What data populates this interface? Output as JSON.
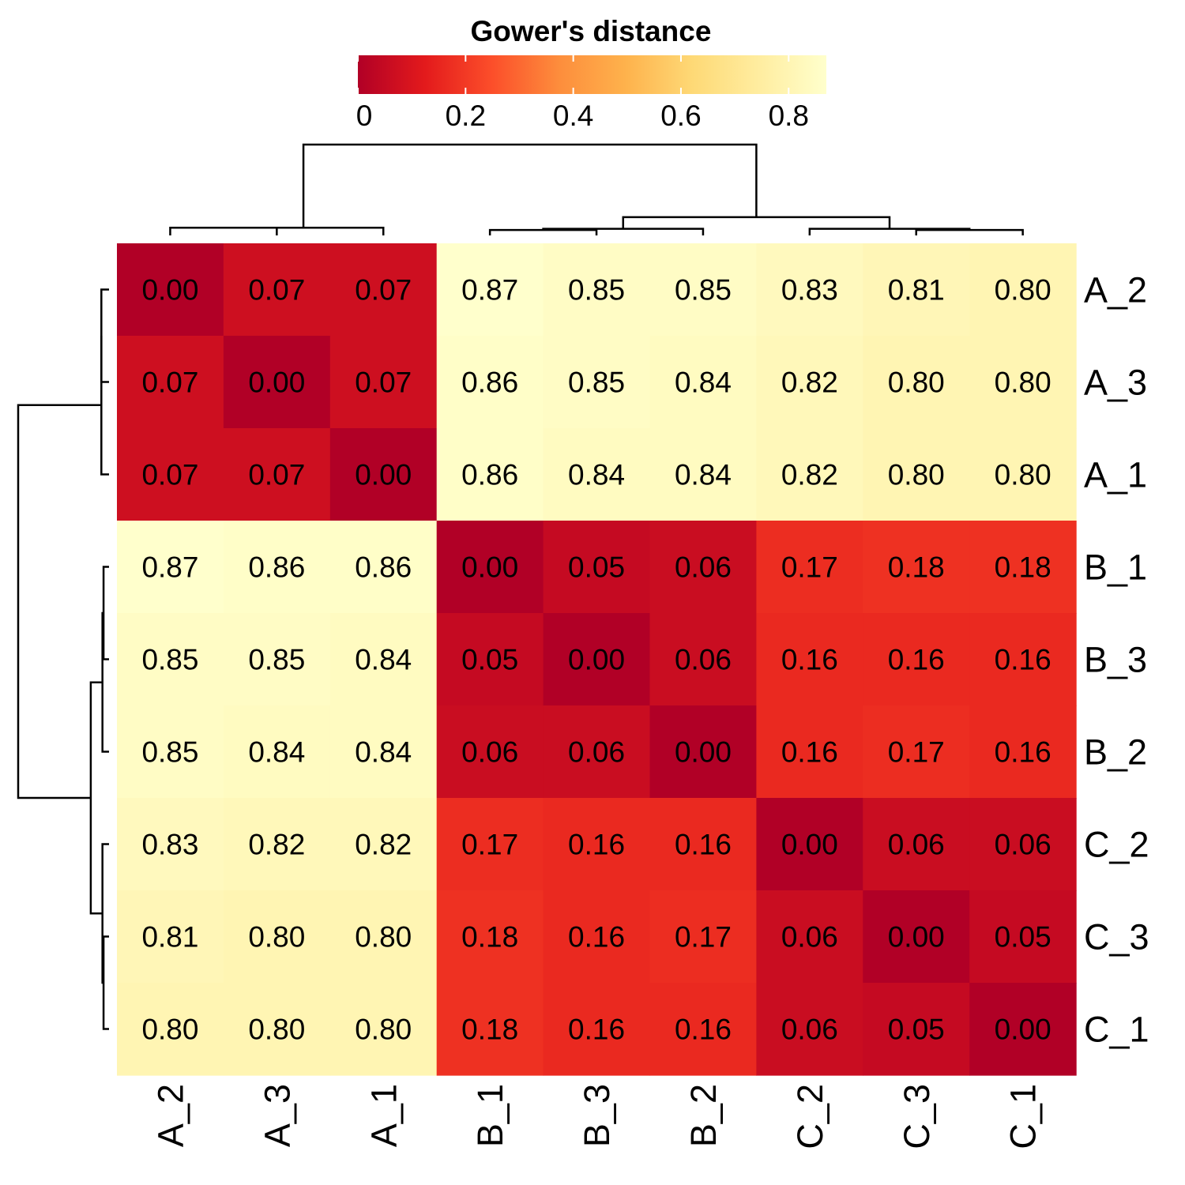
{
  "chart_data": {
    "type": "heatmap",
    "title": "",
    "rows": [
      "A_2",
      "A_3",
      "A_1",
      "B_1",
      "B_3",
      "B_2",
      "C_2",
      "C_3",
      "C_1"
    ],
    "cols": [
      "A_2",
      "A_3",
      "A_1",
      "B_1",
      "B_3",
      "B_2",
      "C_2",
      "C_3",
      "C_1"
    ],
    "values": [
      [
        0.0,
        0.07,
        0.07,
        0.87,
        0.85,
        0.85,
        0.83,
        0.81,
        0.8
      ],
      [
        0.07,
        0.0,
        0.07,
        0.86,
        0.85,
        0.84,
        0.82,
        0.8,
        0.8
      ],
      [
        0.07,
        0.07,
        0.0,
        0.86,
        0.84,
        0.84,
        0.82,
        0.8,
        0.8
      ],
      [
        0.87,
        0.86,
        0.86,
        0.0,
        0.05,
        0.06,
        0.17,
        0.18,
        0.18
      ],
      [
        0.85,
        0.85,
        0.84,
        0.05,
        0.0,
        0.06,
        0.16,
        0.16,
        0.16
      ],
      [
        0.85,
        0.84,
        0.84,
        0.06,
        0.06,
        0.0,
        0.16,
        0.17,
        0.16
      ],
      [
        0.83,
        0.82,
        0.82,
        0.17,
        0.16,
        0.16,
        0.0,
        0.06,
        0.06
      ],
      [
        0.81,
        0.8,
        0.8,
        0.18,
        0.16,
        0.17,
        0.06,
        0.0,
        0.05
      ],
      [
        0.8,
        0.8,
        0.8,
        0.18,
        0.16,
        0.16,
        0.06,
        0.05,
        0.0
      ]
    ],
    "cell_labels": [
      [
        "0.00",
        "0.07",
        "0.07",
        "0.87",
        "0.85",
        "0.85",
        "0.83",
        "0.81",
        "0.80"
      ],
      [
        "0.07",
        "0.00",
        "0.07",
        "0.86",
        "0.85",
        "0.84",
        "0.82",
        "0.80",
        "0.80"
      ],
      [
        "0.07",
        "0.07",
        "0.00",
        "0.86",
        "0.84",
        "0.84",
        "0.82",
        "0.80",
        "0.80"
      ],
      [
        "0.87",
        "0.86",
        "0.86",
        "0.00",
        "0.05",
        "0.06",
        "0.17",
        "0.18",
        "0.18"
      ],
      [
        "0.85",
        "0.85",
        "0.84",
        "0.05",
        "0.00",
        "0.06",
        "0.16",
        "0.16",
        "0.16"
      ],
      [
        "0.85",
        "0.84",
        "0.84",
        "0.06",
        "0.06",
        "0.00",
        "0.16",
        "0.17",
        "0.16"
      ],
      [
        "0.83",
        "0.82",
        "0.82",
        "0.17",
        "0.16",
        "0.16",
        "0.00",
        "0.06",
        "0.06"
      ],
      [
        "0.81",
        "0.80",
        "0.80",
        "0.18",
        "0.16",
        "0.17",
        "0.06",
        "0.00",
        "0.05"
      ],
      [
        "0.80",
        "0.80",
        "0.80",
        "0.18",
        "0.16",
        "0.16",
        "0.06",
        "0.05",
        "0.00"
      ]
    ],
    "dendrogram": "both",
    "legend": {
      "title": "Gower's distance",
      "position": "top",
      "range": [
        0,
        0.87
      ],
      "ticks": [
        0,
        0.2,
        0.4,
        0.6,
        0.8
      ],
      "tick_labels": [
        "0",
        "0.2",
        "0.4",
        "0.6",
        "0.8"
      ],
      "colors": [
        "#b10026",
        "#e31a1c",
        "#fc4e2a",
        "#fd8d3c",
        "#feb24c",
        "#fed976",
        "#ffeda0",
        "#ffffcc"
      ]
    }
  }
}
